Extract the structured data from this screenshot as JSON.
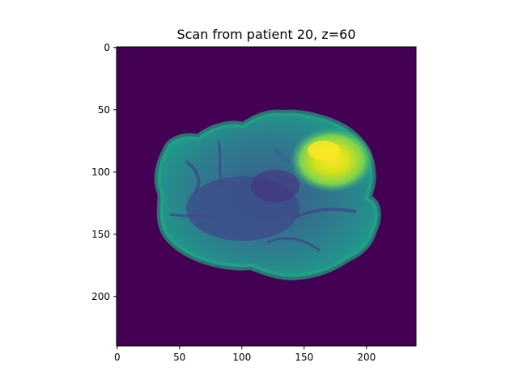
{
  "figure": {
    "title": "Scan from patient 20, z=60"
  },
  "chart_data": {
    "type": "heatmap",
    "title": "Scan from patient 20, z=60",
    "xlabel": "",
    "ylabel": "",
    "xlim": [
      0,
      240
    ],
    "ylim": [
      240,
      0
    ],
    "x_ticks": [
      "0",
      "50",
      "100",
      "150",
      "200"
    ],
    "y_ticks": [
      "0",
      "50",
      "100",
      "150",
      "200"
    ],
    "colormap": "viridis",
    "background_color": "#440154",
    "brain_color": "#2a8b8c",
    "lesion_color": "#e8e419",
    "grid": false,
    "legend": "none"
  }
}
